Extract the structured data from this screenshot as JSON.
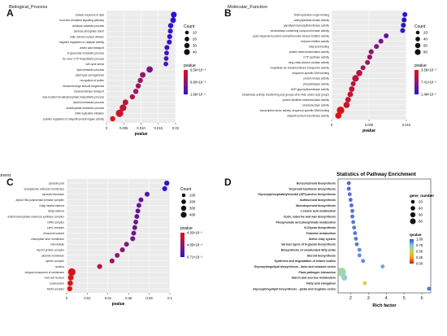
{
  "chart_data": [
    {
      "panel": "A",
      "type": "scatter",
      "title": "Biological_Process",
      "xlabel": "pvalue",
      "xlim": [
        0,
        0.02
      ],
      "xticks": [
        "0",
        "0.005",
        "0.010",
        "0.015",
        "0.02"
      ],
      "categories": [
        "cellular response to lipid",
        "hormone-mediated signaling pathway",
        "cellulose catabolic process",
        "pentose-phosphate shunt",
        "male meiotic nuclear division",
        "negative regulation of catalytic activity",
        "amino acid transport",
        "D-gluconate metabolic process",
        "'de novo' CTP biosynthetic process",
        "cell cycle arrest",
        "lipid metabolic process",
        "plant-type sporogenesis",
        "recognition of pollen",
        "ribosomal large subunit biogenesis",
        "transmembrane transport",
        "myo-inositol hexakisphosphate biosynthetic process",
        "alcohol metabolic process",
        "carbohydrate metabolic process",
        "DNA replication initiation",
        "positive regulation of ubiquitin-protein ligase activity"
      ],
      "values": [
        0.0195,
        0.0193,
        0.0186,
        0.0185,
        0.0183,
        0.0182,
        0.0175,
        0.0174,
        0.0173,
        0.0172,
        0.0125,
        0.0105,
        0.0098,
        0.0092,
        0.0085,
        0.0075,
        0.0055,
        0.0048,
        0.0038,
        0.0018
      ],
      "count": [
        20,
        18,
        14,
        12,
        12,
        12,
        12,
        10,
        10,
        10,
        25,
        18,
        14,
        14,
        14,
        14,
        18,
        30,
        40,
        14
      ],
      "legend_count_title": "Count",
      "legend_count": [
        "10",
        "20",
        "30",
        "40"
      ],
      "legend_count_values": [
        10,
        20,
        30,
        40
      ],
      "legend_color_title": "pvalue",
      "legend_color_labels": [
        "6.50×10⁻³",
        "9.80×10⁻³",
        "1.96×10⁻²"
      ]
    },
    {
      "panel": "B",
      "type": "scatter",
      "title": "Molecular_Function",
      "xlabel": "pvalue",
      "xlim": [
        0,
        0.01
      ],
      "xticks": [
        "0",
        "0.005",
        "0.010"
      ],
      "categories": [
        "DNA replication origin binding",
        "adenylylsulfate kinase activity",
        "glycolipid mannosyltransferase activity",
        "nucleotidase-containing compound kinase activity",
        "cyclin-dependent protein serine/threonine kinase inhibitor activity",
        "enzyme inhibitor activity",
        "fatty acid binding",
        "protein heterodimerization activity",
        "CTP synthase activity",
        "long-chain-alcohol oxidase activity",
        "molybdate ion transmembrane transporter activity",
        "sequence-specific DNA binding",
        "protein kinase activity",
        "phospholipase activity",
        "UDP-glycosyltransferase activity",
        "transferase activity, transferring acyl groups other than amino-acyl groups",
        "protein disulfide oxidoreductase activity",
        "oxidoreductase activity",
        "transcription factor activity, sequence-specific DNA binding",
        "ubiquitin-protein transferase activity"
      ],
      "values": [
        0.0098,
        0.0097,
        0.0096,
        0.0095,
        0.0073,
        0.0066,
        0.006,
        0.0053,
        0.0051,
        0.0048,
        0.0042,
        0.0037,
        0.0032,
        0.0029,
        0.0027,
        0.0025,
        0.0022,
        0.002,
        0.0012,
        0.0009
      ],
      "count": [
        20,
        20,
        20,
        20,
        20,
        20,
        20,
        22,
        20,
        20,
        20,
        40,
        50,
        20,
        30,
        30,
        30,
        40,
        70,
        40
      ],
      "legend_count_title": "Count",
      "legend_count": [
        "20",
        "40",
        "60",
        "80"
      ],
      "legend_count_values": [
        20,
        40,
        60,
        80
      ],
      "legend_color_title": "pvalue",
      "legend_color_labels": [
        "3.56×10⁻³",
        "7.41×10⁻³",
        "1.48×10⁻²"
      ]
    },
    {
      "panel": "C",
      "type": "scatter",
      "title": "Cellular_Component",
      "xlabel": "pvalue",
      "xlim": [
        0,
        0.1
      ],
      "xticks": [
        "0",
        "0.02",
        "0.04",
        "0.06",
        "0.08",
        "0.1"
      ],
      "categories": [
        "cytosolic part",
        "endoplasmic reticulum membrane",
        "cytosolic ribosome",
        "alpha DNA polymerase:primase complex",
        "Golgi medial cisterna",
        "Golgi cisterna",
        "dolichol-phosphate-mannose synthase complex",
        "ORM complex",
        "Lsm1 complex",
        "ribosomal subunit",
        "chloroplast inner membrane",
        "microtubule",
        "Arp2/3 protein complex",
        "plasmid membrane",
        "dynein complex",
        "nucleus",
        "integral component of membrane",
        "host cell nucleus",
        "nucleosome",
        "MCM complex"
      ],
      "values": [
        0.097,
        0.095,
        0.078,
        0.072,
        0.07,
        0.069,
        0.068,
        0.067,
        0.066,
        0.065,
        0.064,
        0.058,
        0.054,
        0.049,
        0.044,
        0.032,
        0.005,
        0.004,
        0.0035,
        0.003
      ],
      "count": [
        120,
        110,
        110,
        100,
        100,
        100,
        100,
        100,
        100,
        100,
        110,
        110,
        110,
        110,
        110,
        120,
        380,
        170,
        150,
        120
      ],
      "legend_count_title": "Count",
      "legend_count": [
        "100",
        "200",
        "300",
        "400"
      ],
      "legend_count_values": [
        100,
        200,
        300,
        400
      ],
      "legend_color_title": "pvalue",
      "legend_color_labels": [
        "4.93×10⁻²",
        "4.85×10⁻²",
        "9.71×10⁻²"
      ]
    },
    {
      "panel": "D",
      "type": "scatter",
      "title": "Statistics of Pathway Enrichment",
      "xlabel": "Rich factor",
      "xlim": [
        1.3,
        6.5
      ],
      "xticks": [
        "2",
        "3",
        "4",
        "5",
        "6"
      ],
      "categories": [
        "Benzoxazinoid biosynthesis",
        "Terpenoid backbone biosynthesis",
        "Glycosylphosphatidylinositol (GPI)-anchor biosynthesis",
        "Isoflavonoid biosynthesis",
        "Monoterpenoid biosynthesis",
        "Linoleic acid metabolism",
        "Cutin, suberine and wax biosynthesis",
        "Phosphonate and phosphinate metabolism",
        "N-Glycan biosynthesis",
        "Thiamine metabolism",
        "Sulfur relay system",
        "Various types of N-glycan biosynthesis",
        "Biosynthesis of unsaturated fatty acids",
        "Steroid biosynthesis",
        "Synthesis and degradation of ketone bodies",
        "Glycosphingolipid biosynthesis - lacto and neolacto series",
        "Plant-pathogen interaction",
        "Starch and sucrose metabolism",
        "Fatty acid elongation",
        "Glycosphingolipid biosynthesis - globo and isoglobo series"
      ],
      "values": [
        1.9,
        1.9,
        1.95,
        2.0,
        2.05,
        2.1,
        2.1,
        2.15,
        2.2,
        2.25,
        2.3,
        2.35,
        2.5,
        2.5,
        2.7,
        3.8,
        1.5,
        1.65,
        2.8,
        6.4
      ],
      "count": [
        8,
        8,
        8,
        8,
        8,
        8,
        8,
        8,
        8,
        8,
        8,
        8,
        8,
        8,
        8,
        8,
        80,
        30,
        8,
        8
      ],
      "qvalue": [
        0.98,
        0.98,
        0.97,
        0.97,
        0.97,
        0.96,
        0.96,
        0.95,
        0.95,
        0.95,
        0.95,
        0.95,
        0.9,
        0.9,
        0.9,
        0.85,
        0.65,
        0.7,
        0.4,
        0.95
      ],
      "legend_count_title": "gene_number",
      "legend_count": [
        "20",
        "40",
        "60",
        "80"
      ],
      "legend_count_values": [
        20,
        40,
        60,
        80
      ],
      "legend_color_title": "qvalue",
      "legend_color_labels": [
        "1.00",
        "0.75",
        "0.50",
        "0.25",
        "0.00"
      ]
    }
  ],
  "panel_labels": [
    "A",
    "B",
    "C",
    "D"
  ]
}
